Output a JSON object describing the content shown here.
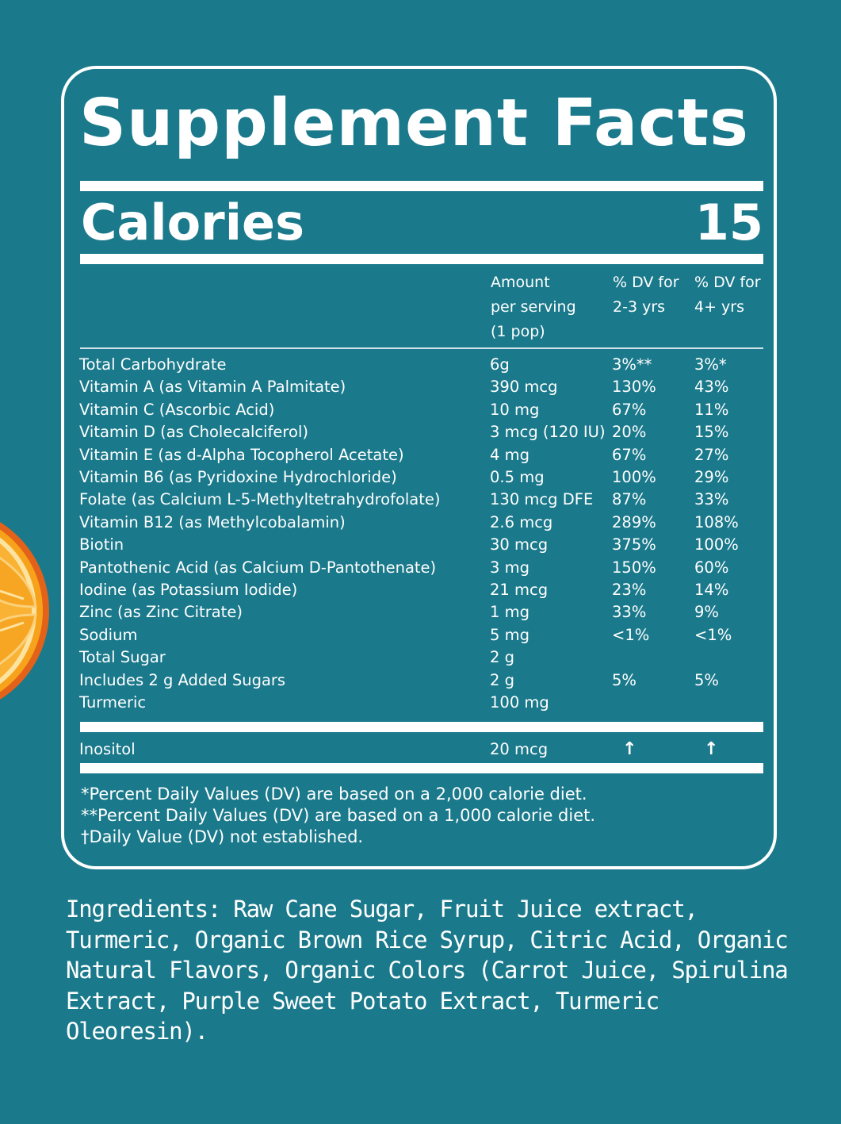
{
  "colors": {
    "background": "#1a798b",
    "text": "#ffffff",
    "orange": "#f7a21b"
  },
  "title": "Supplement Facts",
  "calories": {
    "label": "Calories",
    "value": "15"
  },
  "headers": {
    "amount": [
      "Amount",
      "per serving",
      "(1 pop)"
    ],
    "dv_2_3": [
      "% DV for",
      "2-3 yrs"
    ],
    "dv_4": [
      "% DV for",
      "4+ yrs"
    ]
  },
  "rows": [
    {
      "name": "Total Carbohydrate",
      "amount": "6g",
      "dv1": "3%**",
      "dv2": "3%*"
    },
    {
      "name": "Vitamin A (as Vitamin A Palmitate)",
      "amount": "390 mcg",
      "dv1": "130%",
      "dv2": "43%"
    },
    {
      "name": "Vitamin C (Ascorbic Acid)",
      "amount": "10 mg",
      "dv1": "67%",
      "dv2": "11%"
    },
    {
      "name": "Vitamin D (as Cholecalciferol)",
      "amount": "3 mcg (120 IU)",
      "dv1": "20%",
      "dv2": "15%"
    },
    {
      "name": "Vitamin E (as d-Alpha Tocopherol Acetate)",
      "amount": "4 mg",
      "dv1": "67%",
      "dv2": "27%"
    },
    {
      "name": "Vitamin B6 (as Pyridoxine Hydrochloride)",
      "amount": "0.5 mg",
      "dv1": "100%",
      "dv2": "29%"
    },
    {
      "name": "Folate (as Calcium L-5-Methyltetrahydrofolate)",
      "amount": "130 mcg DFE",
      "dv1": "87%",
      "dv2": "33%"
    },
    {
      "name": "Vitamin B12 (as Methylcobalamin)",
      "amount": "2.6 mcg",
      "dv1": "289%",
      "dv2": "108%"
    },
    {
      "name": "Biotin",
      "amount": "30 mcg",
      "dv1": "375%",
      "dv2": "100%"
    },
    {
      "name": "Pantothenic Acid (as Calcium D-Pantothenate)",
      "amount": "3 mg",
      "dv1": "150%",
      "dv2": "60%"
    },
    {
      "name": "Iodine (as Potassium Iodide)",
      "amount": "21 mcg",
      "dv1": "23%",
      "dv2": "14%"
    },
    {
      "name": "Zinc (as Zinc Citrate)",
      "amount": "1 mg",
      "dv1": "33%",
      "dv2": "9%"
    },
    {
      "name": "Sodium",
      "amount": "5 mg",
      "dv1": "<1%",
      "dv2": "<1%"
    },
    {
      "name": "Total Sugar",
      "amount": "2 g",
      "dv1": "",
      "dv2": ""
    },
    {
      "name": "Includes 2 g Added Sugars",
      "amount": "2 g",
      "dv1": "5%",
      "dv2": "5%"
    },
    {
      "name": "Turmeric",
      "amount": "100 mg",
      "dv1": "",
      "dv2": ""
    }
  ],
  "inositol": {
    "name": "Inositol",
    "amount": "20 mcg",
    "dv1": "↑",
    "dv2": "↑"
  },
  "footnotes": [
    "*Percent Daily Values (DV) are based on a 2,000 calorie diet.",
    "**Percent Daily Values (DV) are based on a 1,000 calorie diet.",
    "†Daily Value (DV) not established."
  ],
  "ingredients": "Ingredients: Raw Cane Sugar, Fruit Juice extract, Turmeric, Organic Brown Rice Syrup, Citric Acid, Organic Natural Flavors, Organic Colors (Carrot Juice, Spirulina Extract, Purple Sweet Potato Extract, Turmeric Oleoresin)."
}
